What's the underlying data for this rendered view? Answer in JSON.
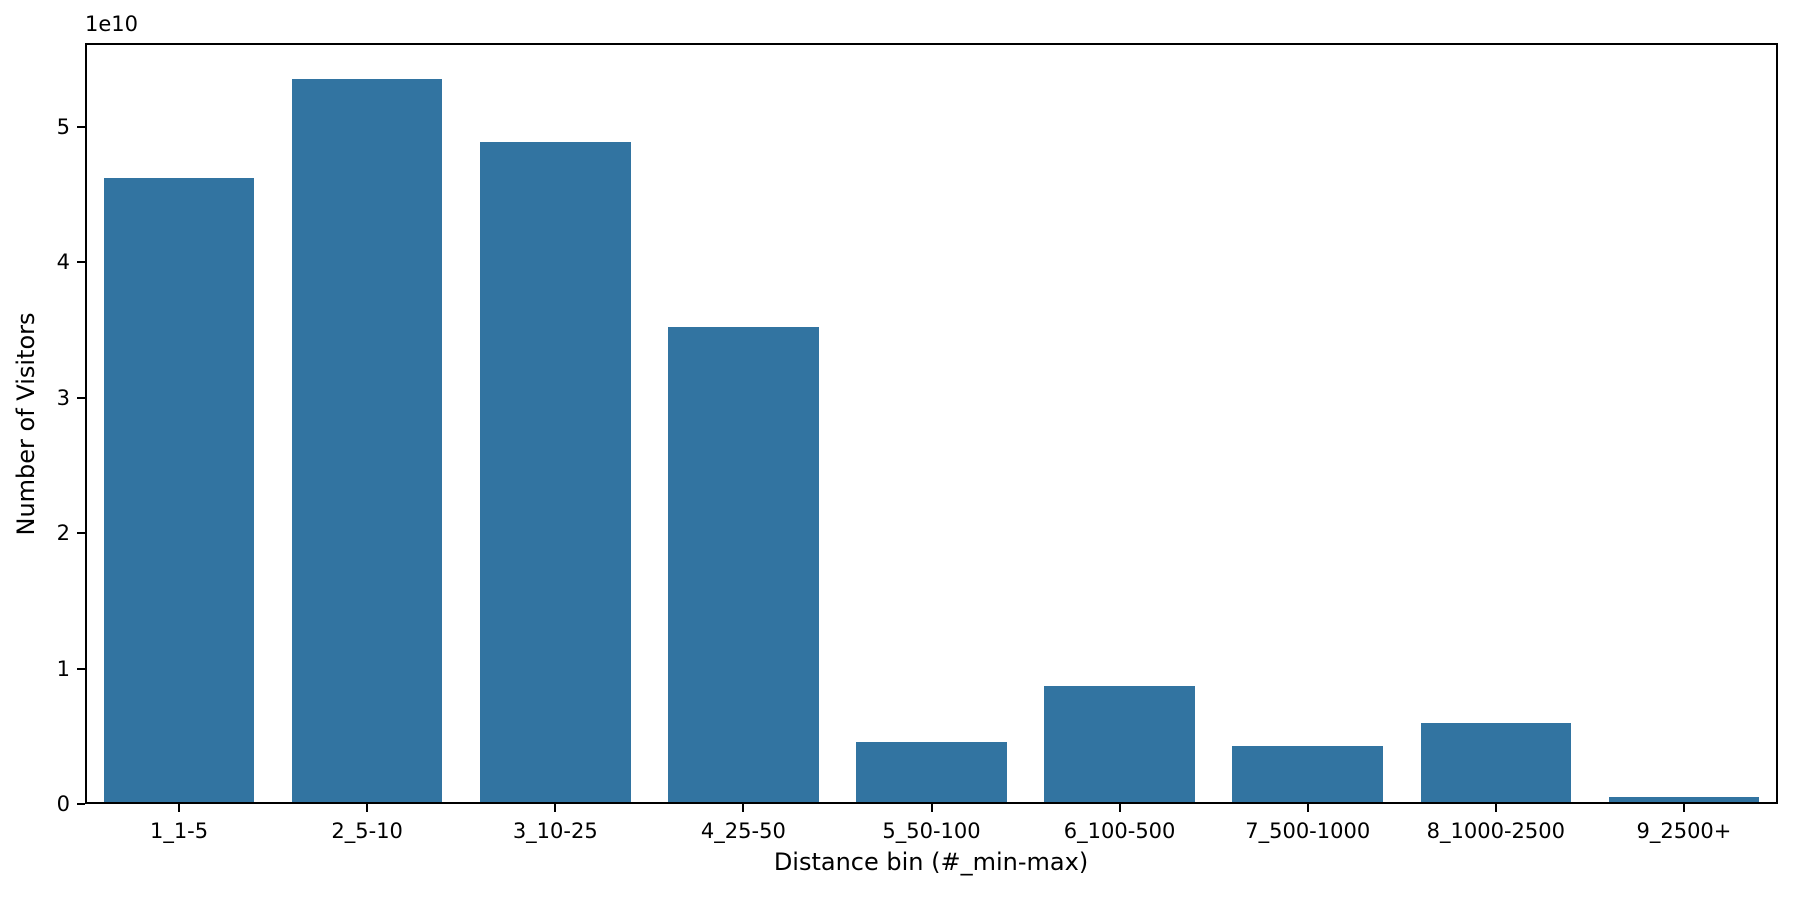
{
  "chart_data": {
    "type": "bar",
    "title": "",
    "xlabel": "Distance bin (#_min-max)",
    "ylabel": "Number of Visitors",
    "offset_label": "1e10",
    "categories": [
      "1_1-5",
      "2_5-10",
      "3_10-25",
      "4_25-50",
      "5_50-100",
      "6_100-500",
      "7_500-1000",
      "8_1000-2500",
      "9_2500+"
    ],
    "values": [
      46200000000,
      53500000000,
      48900000000,
      35200000000,
      4600000000,
      8700000000,
      4300000000,
      6000000000,
      500000000
    ],
    "y_ticks": [
      0,
      1,
      2,
      3,
      4,
      5
    ],
    "y_tick_scale": 10000000000,
    "ylim": [
      0,
      56175000000
    ],
    "xlim_slots": 9,
    "bar_color": "#3274a1",
    "bar_width_fraction": 0.8,
    "grid": false,
    "legend": null,
    "background_color": "#ffffff",
    "spine_color": "#000000",
    "text_color": "#000000"
  }
}
